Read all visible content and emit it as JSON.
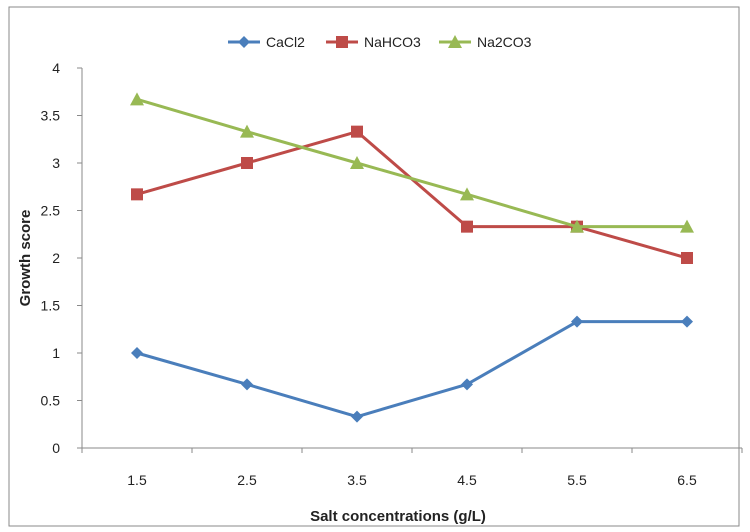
{
  "chart_data": {
    "type": "line",
    "title": "",
    "xlabel": "Salt concentrations (g/L)",
    "ylabel": "Growth score",
    "categories": [
      "1.5",
      "2.5",
      "3.5",
      "4.5",
      "5.5",
      "6.5"
    ],
    "ylim": [
      0,
      4
    ],
    "yticks": [
      "0",
      "0.5",
      "1",
      "1.5",
      "2",
      "2.5",
      "3",
      "3.5",
      "4"
    ],
    "grid": false,
    "legend_position": "top",
    "series": [
      {
        "name": "CaCl2",
        "color": "#4a7ebb",
        "marker": "diamond",
        "values": [
          1.0,
          0.67,
          0.33,
          0.67,
          1.33,
          1.33
        ]
      },
      {
        "name": "NaHCO3",
        "color": "#be4b48",
        "marker": "square",
        "values": [
          2.67,
          3.0,
          3.33,
          2.33,
          2.33,
          2.0
        ]
      },
      {
        "name": "Na2CO3",
        "color": "#98b954",
        "marker": "triangle",
        "values": [
          3.67,
          3.33,
          3.0,
          2.67,
          2.33,
          2.33
        ]
      }
    ]
  }
}
